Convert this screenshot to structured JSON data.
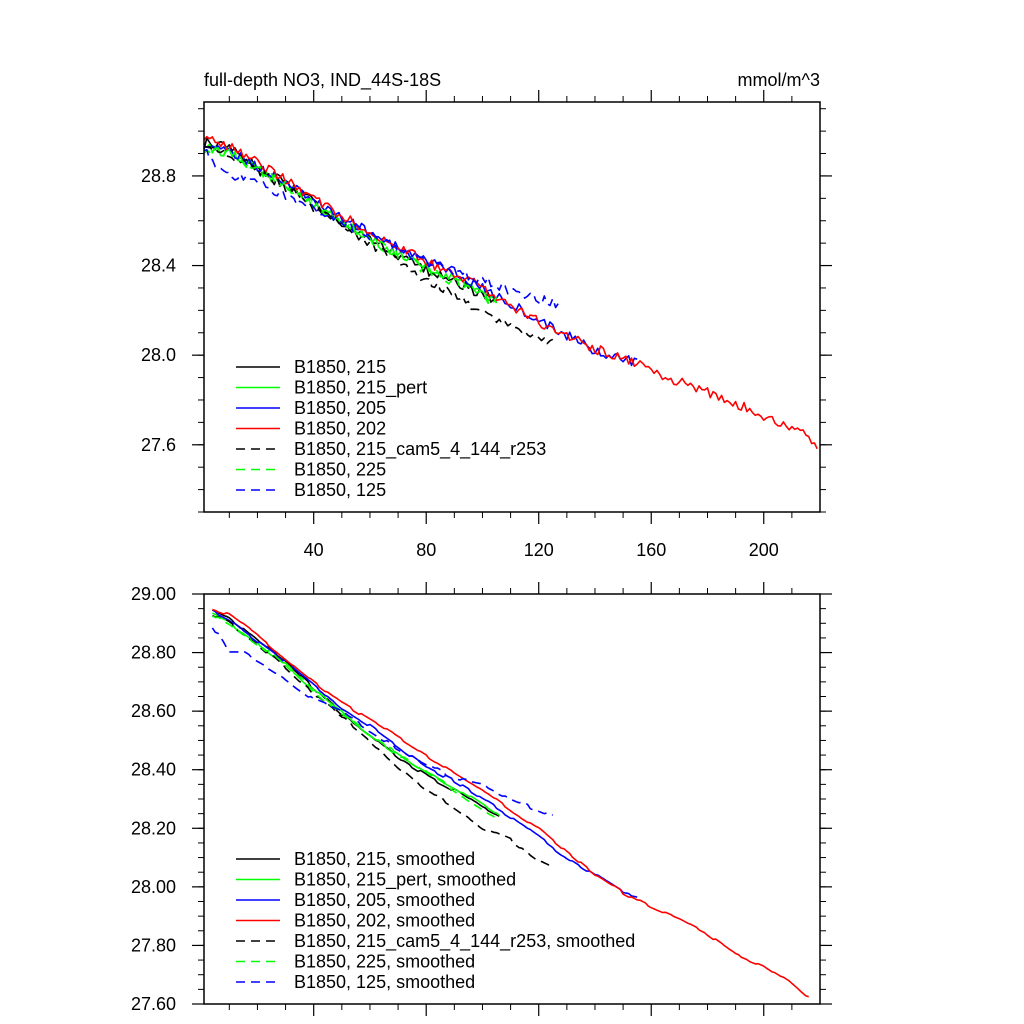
{
  "chart_data": [
    {
      "type": "line",
      "title": "full-depth NO3, IND_44S-18S",
      "units": "mmol/m^3",
      "xlabel": "",
      "ylabel": "",
      "xlim": [
        1,
        220
      ],
      "ylim": [
        27.3,
        29.13
      ],
      "xticks": [
        40,
        80,
        120,
        160,
        200
      ],
      "xtick_labels": [
        "40",
        "80",
        "120",
        "160",
        "200"
      ],
      "yticks": [
        27.6,
        28.0,
        28.4,
        28.8
      ],
      "ytick_labels": [
        "27.6",
        "28.0",
        "28.4",
        "28.8"
      ],
      "grid": false,
      "legend_position": "bottom-left",
      "smoothed": false,
      "series": [
        {
          "name": "B1850, 215",
          "color": "#000000",
          "dash": "solid",
          "x": [
            1,
            2,
            10,
            20,
            30,
            40,
            50,
            60,
            70,
            80,
            90,
            100,
            105
          ],
          "y": [
            28.93,
            28.95,
            28.92,
            28.84,
            28.77,
            28.68,
            28.58,
            28.52,
            28.44,
            28.38,
            28.33,
            28.27,
            28.25
          ]
        },
        {
          "name": "B1850, 215_pert",
          "color": "#00ff00",
          "dash": "solid",
          "x": [
            1,
            10,
            20,
            30,
            40,
            50,
            60,
            70,
            80,
            90,
            100,
            105
          ],
          "y": [
            28.93,
            28.9,
            28.83,
            28.76,
            28.67,
            28.6,
            28.52,
            28.45,
            28.39,
            28.34,
            28.27,
            28.24
          ]
        },
        {
          "name": "B1850, 205",
          "color": "#0000ff",
          "dash": "solid",
          "x": [
            1,
            10,
            20,
            30,
            40,
            50,
            60,
            70,
            80,
            90,
            100,
            110,
            120,
            130,
            140,
            150,
            155
          ],
          "y": [
            28.94,
            28.91,
            28.84,
            28.77,
            28.69,
            28.61,
            28.55,
            28.48,
            28.42,
            28.37,
            28.3,
            28.23,
            28.16,
            28.09,
            28.02,
            27.98,
            27.97
          ]
        },
        {
          "name": "B1850, 202",
          "color": "#ff0000",
          "dash": "solid",
          "x": [
            1,
            3,
            10,
            20,
            30,
            40,
            50,
            60,
            70,
            80,
            90,
            100,
            110,
            120,
            130,
            140,
            150,
            158,
            165,
            175,
            185,
            195,
            205,
            215,
            219
          ],
          "y": [
            28.95,
            28.98,
            28.93,
            28.86,
            28.78,
            28.7,
            28.62,
            28.55,
            28.48,
            28.42,
            28.36,
            28.3,
            28.22,
            28.15,
            28.09,
            28.03,
            27.98,
            27.96,
            27.9,
            27.86,
            27.81,
            27.76,
            27.7,
            27.65,
            27.58
          ]
        },
        {
          "name": "B1850, 215_cam5_4_144_r253",
          "color": "#000000",
          "dash": "dashed",
          "x": [
            1,
            10,
            20,
            30,
            40,
            50,
            60,
            70,
            80,
            90,
            100,
            110,
            120,
            125
          ],
          "y": [
            28.93,
            28.9,
            28.83,
            28.75,
            28.66,
            28.58,
            28.5,
            28.42,
            28.33,
            28.27,
            28.19,
            28.13,
            28.07,
            28.05
          ]
        },
        {
          "name": "B1850, 225",
          "color": "#00ff00",
          "dash": "dashed",
          "x": [
            1,
            10,
            20,
            30,
            40,
            50,
            60,
            70,
            80,
            90,
            100,
            105
          ],
          "y": [
            28.92,
            28.9,
            28.83,
            28.76,
            28.67,
            28.59,
            28.52,
            28.45,
            28.38,
            28.33,
            28.26,
            28.24
          ]
        },
        {
          "name": "B1850, 125",
          "color": "#0000ff",
          "dash": "dashed",
          "x": [
            1,
            5,
            10,
            15,
            20,
            30,
            40,
            50,
            60,
            70,
            80,
            90,
            100,
            110,
            120,
            127
          ],
          "y": [
            28.92,
            28.86,
            28.8,
            28.79,
            28.77,
            28.71,
            28.65,
            28.6,
            28.53,
            28.47,
            28.42,
            28.37,
            28.34,
            28.29,
            28.25,
            28.23
          ]
        }
      ]
    },
    {
      "type": "line",
      "title": "",
      "xlabel": "",
      "ylabel": "",
      "xlim": [
        1,
        220
      ],
      "ylim": [
        27.6,
        29.0
      ],
      "xticks": [
        40,
        80,
        120,
        160,
        200
      ],
      "xtick_labels": [],
      "yticks": [
        27.6,
        27.8,
        28.0,
        28.2,
        28.4,
        28.6,
        28.8,
        29.0
      ],
      "ytick_labels": [
        "27.60",
        "27.80",
        "28.00",
        "28.20",
        "28.40",
        "28.60",
        "28.80",
        "29.00"
      ],
      "grid": false,
      "legend_position": "bottom-left",
      "smoothed": true,
      "series": [
        {
          "name": "B1850, 215, smoothed",
          "color": "#000000",
          "dash": "solid",
          "x": [
            4,
            10,
            20,
            30,
            40,
            50,
            60,
            70,
            80,
            90,
            100,
            106
          ],
          "y": [
            28.95,
            28.92,
            28.84,
            28.77,
            28.68,
            28.59,
            28.52,
            28.44,
            28.38,
            28.33,
            28.27,
            28.24
          ]
        },
        {
          "name": "B1850, 215_pert, smoothed",
          "color": "#00ff00",
          "dash": "solid",
          "x": [
            4,
            10,
            20,
            30,
            40,
            50,
            60,
            70,
            80,
            90,
            100,
            106
          ],
          "y": [
            28.93,
            28.9,
            28.83,
            28.76,
            28.67,
            28.6,
            28.52,
            28.45,
            28.39,
            28.34,
            28.28,
            28.24
          ]
        },
        {
          "name": "B1850, 205, smoothed",
          "color": "#0000ff",
          "dash": "solid",
          "x": [
            4,
            10,
            20,
            30,
            40,
            50,
            60,
            70,
            80,
            90,
            100,
            110,
            120,
            130,
            140,
            150,
            155
          ],
          "y": [
            28.94,
            28.91,
            28.84,
            28.77,
            28.69,
            28.61,
            28.55,
            28.48,
            28.41,
            28.36,
            28.3,
            28.24,
            28.17,
            28.1,
            28.04,
            27.98,
            27.97
          ]
        },
        {
          "name": "B1850, 202, smoothed",
          "color": "#ff0000",
          "dash": "solid",
          "x": [
            4,
            10,
            20,
            30,
            40,
            50,
            60,
            70,
            80,
            90,
            100,
            110,
            120,
            130,
            140,
            150,
            160,
            170,
            180,
            190,
            200,
            210,
            216
          ],
          "y": [
            28.95,
            28.93,
            28.86,
            28.78,
            28.7,
            28.63,
            28.57,
            28.51,
            28.45,
            28.39,
            28.33,
            28.26,
            28.2,
            28.12,
            28.04,
            27.98,
            27.93,
            27.89,
            27.84,
            27.77,
            27.73,
            27.67,
            27.62
          ]
        },
        {
          "name": "B1850, 215_cam5_4_144_r253, smoothed",
          "color": "#000000",
          "dash": "dashed",
          "x": [
            4,
            10,
            20,
            30,
            40,
            50,
            60,
            70,
            80,
            90,
            100,
            110,
            120,
            124
          ],
          "y": [
            28.93,
            28.9,
            28.83,
            28.75,
            28.66,
            28.58,
            28.5,
            28.41,
            28.33,
            28.27,
            28.2,
            28.16,
            28.09,
            28.07
          ]
        },
        {
          "name": "B1850, 225, smoothed",
          "color": "#00ff00",
          "dash": "dashed",
          "x": [
            4,
            10,
            20,
            30,
            40,
            50,
            60,
            70,
            80,
            90,
            100,
            106
          ],
          "y": [
            28.93,
            28.9,
            28.83,
            28.76,
            28.67,
            28.59,
            28.52,
            28.45,
            28.39,
            28.33,
            28.26,
            28.23
          ]
        },
        {
          "name": "B1850, 125, smoothed",
          "color": "#0000ff",
          "dash": "dashed",
          "x": [
            4,
            10,
            15,
            20,
            30,
            40,
            50,
            60,
            70,
            80,
            90,
            100,
            110,
            120,
            125
          ],
          "y": [
            28.89,
            28.8,
            28.8,
            28.77,
            28.71,
            28.64,
            28.6,
            28.53,
            28.47,
            28.42,
            28.37,
            28.35,
            28.3,
            28.26,
            28.24
          ]
        }
      ]
    }
  ]
}
